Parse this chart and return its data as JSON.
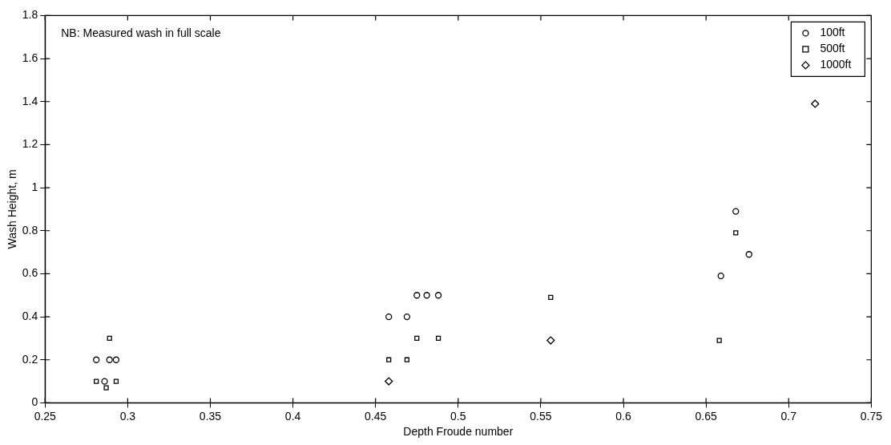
{
  "chart_data": {
    "type": "scatter",
    "xlabel": "Depth Froude number",
    "ylabel": "Wash Height, m",
    "annotations": [
      "NB: Measured wash in full scale"
    ],
    "xlim": [
      0.25,
      0.75
    ],
    "xticks": [
      0.25,
      0.3,
      0.35,
      0.4,
      0.45,
      0.5,
      0.55,
      0.6,
      0.65,
      0.7,
      0.75
    ],
    "ylim": [
      0,
      1.8
    ],
    "yticks": [
      0,
      0.2,
      0.4,
      0.6,
      0.8,
      1,
      1.2,
      1.4,
      1.6,
      1.8
    ],
    "grid": false,
    "legend": "top right",
    "series": [
      {
        "name": "100ft",
        "color": "#000000",
        "marker": "circle",
        "x": [
          0.281,
          0.286,
          0.289,
          0.293,
          0.458,
          0.469,
          0.475,
          0.481,
          0.488,
          0.659,
          0.668,
          0.676
        ],
        "values": [
          0.2,
          0.1,
          0.2,
          0.2,
          0.4,
          0.4,
          0.5,
          0.5,
          0.5,
          0.59,
          0.89,
          0.69
        ]
      },
      {
        "name": "500ft",
        "color": "#000000",
        "marker": "square",
        "x": [
          0.281,
          0.287,
          0.289,
          0.293,
          0.458,
          0.469,
          0.475,
          0.488,
          0.556,
          0.658,
          0.668
        ],
        "values": [
          0.1,
          0.07,
          0.3,
          0.1,
          0.2,
          0.2,
          0.3,
          0.3,
          0.49,
          0.29,
          0.79
        ]
      },
      {
        "name": "1000ft",
        "color": "#000000",
        "marker": "diamond",
        "x": [
          0.458,
          0.556,
          0.716
        ],
        "values": [
          0.1,
          0.29,
          1.39
        ]
      }
    ]
  }
}
